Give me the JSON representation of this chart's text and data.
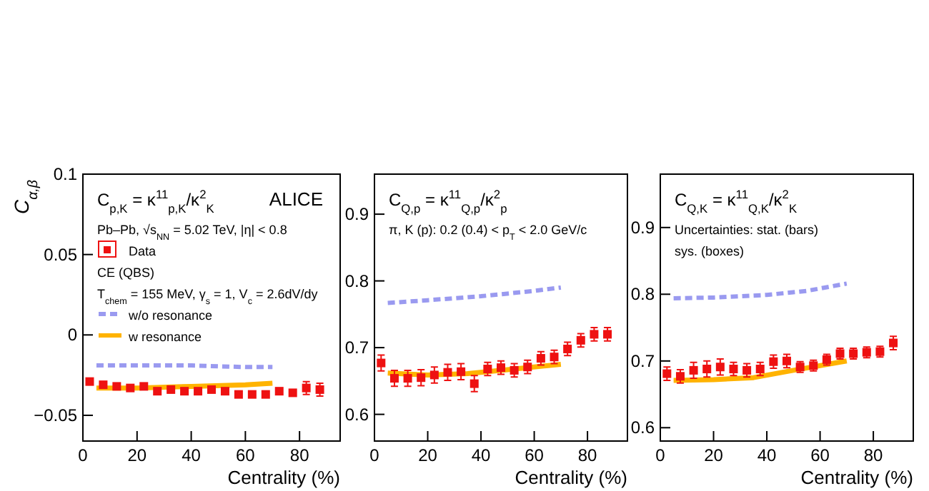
{
  "chart_data": [
    {
      "type": "scatter",
      "title": "$_{}$C$_{p,K}$ = κ$^{11}$$_{p,K}$/κ$^{2}$$_{K}$",
      "xlabel": "Centrality (%)",
      "ylabel": "C$_{α,β}$",
      "legend": "top left",
      "annotations": [
        "ALICE",
        "Pb–Pb, √s$_{NN}$ = 5.02 TeV, |η| < 0.8",
        "CE (QBS)",
        "T$_{chem}$ = 155 MeV, γ$_{s}$ = 1, V$_{c}$ = 2.6dV/dy"
      ],
      "xlim": [
        0,
        95
      ],
      "xticks": [
        0,
        20,
        40,
        60,
        80
      ],
      "ylim": [
        -0.066,
        0.1
      ],
      "yticks": [
        {
          "value": -0.05,
          "label": "−0.05"
        },
        0,
        0.05,
        0.1
      ],
      "series": [
        {
          "name": "Data",
          "marker": "square",
          "color": "#ee1111",
          "x": [
            2.5,
            7.5,
            12.5,
            17.5,
            22.5,
            27.5,
            32.5,
            37.5,
            42.5,
            47.5,
            52.5,
            57.5,
            62.5,
            67.5,
            72.5,
            77.5,
            82.5,
            87.5
          ],
          "values": [
            -0.029,
            -0.031,
            -0.032,
            -0.033,
            -0.032,
            -0.035,
            -0.034,
            -0.035,
            -0.035,
            -0.034,
            -0.035,
            -0.037,
            -0.037,
            -0.037,
            -0.035,
            -0.036,
            -0.033,
            -0.034
          ],
          "errors": [
            null,
            null,
            null,
            null,
            null,
            null,
            null,
            null,
            null,
            null,
            null,
            null,
            null,
            null,
            null,
            null,
            0.004,
            0.004
          ]
        },
        {
          "name": "w/o resonance",
          "type": "line",
          "line_style": "dashed",
          "color": "#9a9af0",
          "x": [
            5,
            20,
            40,
            60,
            70
          ],
          "values": [
            -0.019,
            -0.019,
            -0.019,
            -0.02,
            -0.02
          ]
        },
        {
          "name": "w resonance",
          "type": "line",
          "line_style": "solid",
          "color": "#ffb300",
          "x": [
            5,
            20,
            40,
            60,
            70
          ],
          "values": [
            -0.033,
            -0.033,
            -0.032,
            -0.031,
            -0.03
          ]
        }
      ]
    },
    {
      "type": "scatter",
      "title": "$_{}$C$_{Q,p}$ = κ$^{11}$$_{Q,p}$/κ$^{2}$$_{p}$",
      "xlabel": "Centrality (%)",
      "annotations": [
        "π, K (p): 0.2 (0.4) < p$_{T}$ < 2.0 GeV/c"
      ],
      "xlim": [
        0,
        95
      ],
      "xticks": [
        0,
        20,
        40,
        60,
        80
      ],
      "ylim": [
        0.56,
        0.96
      ],
      "yticks": [
        0.6,
        0.7,
        0.8,
        0.9
      ],
      "series": [
        {
          "marker": "square",
          "color": "#ee1111",
          "x": [
            2.5,
            7.5,
            12.5,
            17.5,
            22.5,
            27.5,
            32.5,
            37.5,
            42.5,
            47.5,
            52.5,
            57.5,
            62.5,
            67.5,
            72.5,
            77.5,
            82.5,
            87.5
          ],
          "values": [
            0.677,
            0.654,
            0.654,
            0.655,
            0.659,
            0.663,
            0.664,
            0.646,
            0.668,
            0.67,
            0.666,
            0.671,
            0.684,
            0.686,
            0.698,
            0.711,
            0.72,
            0.72
          ],
          "errors": [
            0.012,
            0.012,
            0.012,
            0.012,
            0.012,
            0.012,
            0.012,
            0.012,
            0.01,
            0.01,
            0.01,
            0.01,
            0.01,
            0.01,
            0.01,
            0.01,
            0.01,
            0.01
          ]
        },
        {
          "type": "line",
          "line_style": "dashed",
          "color": "#9a9af0",
          "x": [
            5,
            20,
            40,
            60,
            70
          ],
          "values": [
            0.767,
            0.771,
            0.777,
            0.785,
            0.79
          ]
        },
        {
          "type": "line",
          "line_style": "solid",
          "color": "#ffb300",
          "x": [
            5,
            20,
            35,
            50,
            70
          ],
          "values": [
            0.662,
            0.659,
            0.661,
            0.667,
            0.675
          ]
        }
      ]
    },
    {
      "type": "scatter",
      "title": "$_{}$C$_{Q,K}$ = κ$^{11}$$_{Q,K}$/κ$^{2}$$_{K}$",
      "xlabel": "Centrality (%)",
      "annotations": [
        "Uncertainties: stat. (bars)",
        "sys. (boxes)"
      ],
      "xlim": [
        0,
        95
      ],
      "xticks": [
        0,
        20,
        40,
        60,
        80
      ],
      "ylim": [
        0.58,
        0.98
      ],
      "yticks": [
        0.6,
        0.7,
        0.8,
        0.9
      ],
      "series": [
        {
          "marker": "square",
          "color": "#ee1111",
          "x": [
            2.5,
            7.5,
            12.5,
            17.5,
            22.5,
            27.5,
            32.5,
            37.5,
            42.5,
            47.5,
            52.5,
            57.5,
            62.5,
            67.5,
            72.5,
            77.5,
            82.5,
            87.5
          ],
          "values": [
            0.681,
            0.677,
            0.686,
            0.688,
            0.691,
            0.688,
            0.686,
            0.688,
            0.699,
            0.7,
            0.691,
            0.693,
            0.702,
            0.711,
            0.711,
            0.713,
            0.714,
            0.727
          ],
          "errors": [
            0.01,
            0.01,
            0.012,
            0.012,
            0.012,
            0.01,
            0.01,
            0.01,
            0.01,
            0.01,
            0.008,
            0.008,
            0.008,
            0.008,
            0.008,
            0.008,
            0.008,
            0.01
          ]
        },
        {
          "type": "line",
          "line_style": "dashed",
          "color": "#9a9af0",
          "x": [
            5,
            20,
            40,
            55,
            70
          ],
          "values": [
            0.794,
            0.795,
            0.799,
            0.805,
            0.816
          ]
        },
        {
          "type": "line",
          "line_style": "solid",
          "color": "#ffb300",
          "x": [
            5,
            20,
            35,
            50,
            70
          ],
          "values": [
            0.671,
            0.672,
            0.675,
            0.686,
            0.7
          ]
        }
      ]
    }
  ]
}
